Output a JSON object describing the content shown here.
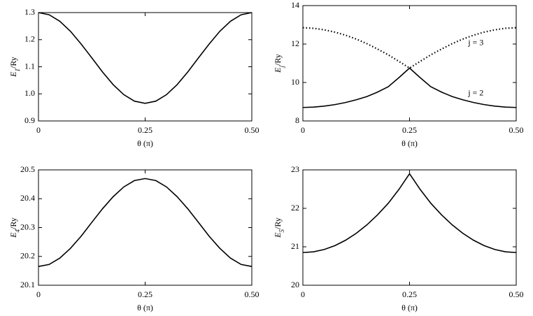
{
  "chart_data": [
    {
      "type": "line",
      "xlabel": "θ (π)",
      "ylabel": [
        "E",
        "1",
        "/Ry"
      ],
      "x": [
        0,
        0.025,
        0.05,
        0.075,
        0.1,
        0.125,
        0.15,
        0.175,
        0.2,
        0.225,
        0.25,
        0.275,
        0.3,
        0.325,
        0.35,
        0.375,
        0.4,
        0.425,
        0.45,
        0.475,
        0.5
      ],
      "series": [
        {
          "color": "#000000",
          "style": "solid",
          "values": [
            1.3,
            1.292,
            1.268,
            1.231,
            1.184,
            1.133,
            1.081,
            1.034,
            0.997,
            0.973,
            0.965,
            0.973,
            0.997,
            1.034,
            1.081,
            1.133,
            1.184,
            1.231,
            1.268,
            1.292,
            1.3
          ]
        }
      ],
      "xlim": [
        0,
        0.5
      ],
      "xticks": [
        0,
        0.25,
        {
          "value": 0.5,
          "label": "0.50"
        }
      ],
      "ylim": [
        0.9,
        1.3
      ],
      "yticks": [
        0.9,
        {
          "value": 1,
          "label": "1.0"
        },
        1.1,
        1.2,
        1.3
      ]
    },
    {
      "type": "line",
      "xlabel": "θ (π)",
      "ylabel": [
        "E",
        "j",
        "/Ry"
      ],
      "x": [
        0,
        0.025,
        0.05,
        0.075,
        0.1,
        0.125,
        0.15,
        0.175,
        0.2,
        0.225,
        0.25,
        0.275,
        0.3,
        0.325,
        0.35,
        0.375,
        0.4,
        0.425,
        0.45,
        0.475,
        0.5
      ],
      "series": [
        {
          "name": "j = 3",
          "color": "#000000",
          "style": "dotted",
          "values": [
            12.85,
            12.82,
            12.74,
            12.62,
            12.46,
            12.26,
            12.02,
            11.74,
            11.44,
            11.1,
            10.75,
            11.1,
            11.44,
            11.74,
            12.02,
            12.26,
            12.46,
            12.62,
            12.74,
            12.82,
            12.85
          ]
        },
        {
          "name": "j = 2",
          "color": "#000000",
          "style": "solid",
          "values": [
            8.7,
            8.72,
            8.77,
            8.85,
            8.96,
            9.1,
            9.27,
            9.5,
            9.78,
            10.25,
            10.75,
            10.25,
            9.78,
            9.5,
            9.27,
            9.1,
            8.96,
            8.85,
            8.77,
            8.72,
            8.7
          ]
        }
      ],
      "xlim": [
        0,
        0.5
      ],
      "xticks": [
        0,
        0.25,
        {
          "value": 0.5,
          "label": "0.50"
        }
      ],
      "ylim": [
        8,
        14
      ],
      "yticks": [
        8,
        10,
        12,
        14
      ]
    },
    {
      "type": "line",
      "xlabel": "θ (π)",
      "ylabel": [
        "E",
        "4",
        "/Ry"
      ],
      "x": [
        0,
        0.025,
        0.05,
        0.075,
        0.1,
        0.125,
        0.15,
        0.175,
        0.2,
        0.225,
        0.25,
        0.275,
        0.3,
        0.325,
        0.35,
        0.375,
        0.4,
        0.425,
        0.45,
        0.475,
        0.5
      ],
      "series": [
        {
          "color": "#000000",
          "style": "solid",
          "values": [
            20.165,
            20.172,
            20.194,
            20.228,
            20.27,
            20.318,
            20.365,
            20.407,
            20.441,
            20.463,
            20.47,
            20.463,
            20.441,
            20.407,
            20.365,
            20.318,
            20.27,
            20.228,
            20.194,
            20.172,
            20.165
          ]
        }
      ],
      "xlim": [
        0,
        0.5
      ],
      "xticks": [
        0,
        0.25,
        {
          "value": 0.5,
          "label": "0.50"
        }
      ],
      "ylim": [
        20.1,
        20.5
      ],
      "yticks": [
        20.1,
        20.2,
        20.3,
        20.4,
        20.5
      ]
    },
    {
      "type": "line",
      "xlabel": "θ (π)",
      "ylabel": [
        "E",
        "5",
        "/Ry"
      ],
      "x": [
        0,
        0.025,
        0.05,
        0.075,
        0.1,
        0.125,
        0.15,
        0.175,
        0.2,
        0.225,
        0.25,
        0.275,
        0.3,
        0.325,
        0.35,
        0.375,
        0.4,
        0.425,
        0.45,
        0.475,
        0.5
      ],
      "series": [
        {
          "color": "#000000",
          "style": "solid",
          "values": [
            20.85,
            20.87,
            20.93,
            21.03,
            21.17,
            21.35,
            21.57,
            21.83,
            22.13,
            22.49,
            22.9,
            22.49,
            22.13,
            21.83,
            21.57,
            21.35,
            21.17,
            21.03,
            20.93,
            20.87,
            20.85
          ]
        }
      ],
      "xlim": [
        0,
        0.5
      ],
      "xticks": [
        0,
        0.25,
        {
          "value": 0.5,
          "label": "0.50"
        }
      ],
      "ylim": [
        20,
        23
      ],
      "yticks": [
        20,
        21,
        22,
        23
      ]
    }
  ]
}
